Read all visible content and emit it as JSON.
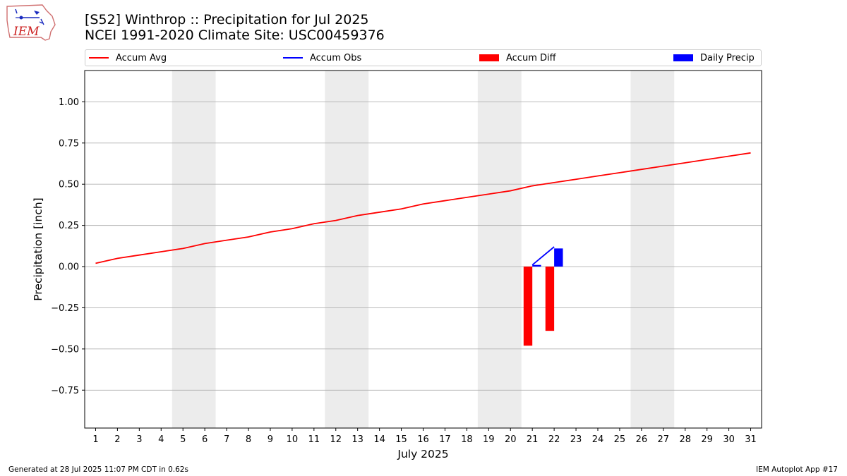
{
  "header": {
    "title_line1": "[S52] Winthrop :: Precipitation for Jul 2025",
    "title_line2": "NCEI 1991-2020 Climate Site: USC00459376"
  },
  "logo": {
    "text": "IEM"
  },
  "legend": {
    "placement": "top",
    "items": [
      {
        "label": "Accum Avg",
        "kind": "line",
        "color": "#ff0000"
      },
      {
        "label": "Accum Obs",
        "kind": "line",
        "color": "#0000ff"
      },
      {
        "label": "Accum Diff",
        "kind": "patch",
        "color": "#ff0000"
      },
      {
        "label": "Daily Precip",
        "kind": "patch",
        "color": "#0000ff"
      }
    ]
  },
  "footer": {
    "left": "Generated at 28 Jul 2025 11:07 PM CDT in 0.62s",
    "right": "IEM Autoplot App #17"
  },
  "chart_data": {
    "type": "bar",
    "xlabel": "July 2025",
    "ylabel": "Precipitation [inch]",
    "xlim": [
      0.5,
      31.5
    ],
    "ylim": [
      -0.98,
      1.19
    ],
    "grid": "horizontal",
    "x_ticks": [
      1,
      2,
      3,
      4,
      5,
      6,
      7,
      8,
      9,
      10,
      11,
      12,
      13,
      14,
      15,
      16,
      17,
      18,
      19,
      20,
      21,
      22,
      23,
      24,
      25,
      26,
      27,
      28,
      29,
      30,
      31
    ],
    "y_ticks": [
      -0.75,
      -0.5,
      -0.25,
      0.0,
      0.25,
      0.5,
      0.75,
      1.0
    ],
    "y_tick_labels": [
      "−0.75",
      "−0.50",
      "−0.25",
      "0.00",
      "0.25",
      "0.50",
      "0.75",
      "1.00"
    ],
    "weekend_shading": [
      [
        4.5,
        6.5
      ],
      [
        11.5,
        13.5
      ],
      [
        18.5,
        20.5
      ],
      [
        25.5,
        27.5
      ]
    ],
    "shading_color": "#ececec",
    "series": [
      {
        "name": "Accum Avg",
        "type": "line",
        "color": "#ff0000",
        "x": [
          1,
          2,
          3,
          4,
          5,
          6,
          7,
          8,
          9,
          10,
          11,
          12,
          13,
          14,
          15,
          16,
          17,
          18,
          19,
          20,
          21,
          22,
          23,
          24,
          25,
          26,
          27,
          28,
          29,
          30,
          31
        ],
        "values": [
          0.02,
          0.05,
          0.07,
          0.09,
          0.11,
          0.14,
          0.16,
          0.18,
          0.21,
          0.23,
          0.26,
          0.28,
          0.31,
          0.33,
          0.35,
          0.38,
          0.4,
          0.42,
          0.44,
          0.46,
          0.49,
          0.51,
          0.53,
          0.55,
          0.57,
          0.59,
          0.61,
          0.63,
          0.65,
          0.67,
          0.69
        ]
      },
      {
        "name": "Accum Obs",
        "type": "line",
        "color": "#0000ff",
        "x": [
          21,
          22
        ],
        "values": [
          0.01,
          0.12
        ]
      },
      {
        "name": "Accum Diff",
        "type": "bar",
        "color": "#ff0000",
        "offset": -0.2,
        "x": [
          21,
          22
        ],
        "values": [
          -0.48,
          -0.39
        ]
      },
      {
        "name": "Daily Precip",
        "type": "bar",
        "color": "#0000ff",
        "offset": 0.2,
        "x": [
          21,
          22
        ],
        "values": [
          0.01,
          0.11
        ]
      }
    ]
  }
}
